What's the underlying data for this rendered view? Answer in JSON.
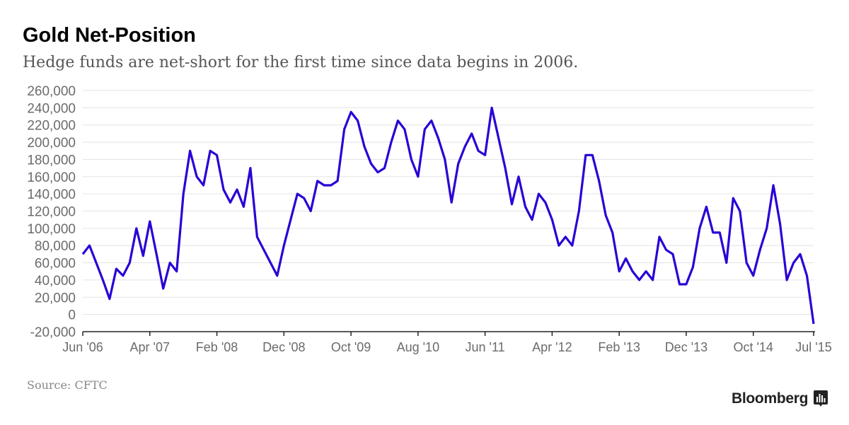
{
  "chart_data": {
    "type": "line",
    "title": "Gold Net-Position",
    "subtitle": "Hedge funds are net-short for the first time since data begins in 2006.",
    "source": "Source: CFTC",
    "brand": "Bloomberg",
    "xlabel": "",
    "ylabel": "",
    "ylim": [
      -20000,
      260000
    ],
    "yticks": [
      -20000,
      0,
      20000,
      40000,
      60000,
      80000,
      100000,
      120000,
      140000,
      160000,
      180000,
      200000,
      220000,
      240000,
      260000
    ],
    "ytick_labels": [
      "-20,000",
      "0",
      "20,000",
      "40,000",
      "60,000",
      "80,000",
      "100,000",
      "120,000",
      "140,000",
      "160,000",
      "180,000",
      "200,000",
      "220,000",
      "240,000",
      "260,000"
    ],
    "xticks": [
      "2006-06",
      "2007-04",
      "2008-02",
      "2008-12",
      "2009-10",
      "2010-08",
      "2011-06",
      "2012-04",
      "2013-02",
      "2013-12",
      "2014-10",
      "2015-07"
    ],
    "xtick_labels": [
      "Jun '06",
      "Apr '07",
      "Feb '08",
      "Dec '08",
      "Oct '09",
      "Aug '10",
      "Jun '11",
      "Apr '12",
      "Feb '13",
      "Dec '13",
      "Oct '14",
      "Jul '15"
    ],
    "grid": true,
    "line_color": "#2a00d6",
    "series": [
      {
        "x": [
          "2006-06",
          "2006-07",
          "2006-08",
          "2006-09",
          "2006-10",
          "2006-11",
          "2006-12",
          "2007-01",
          "2007-02",
          "2007-03",
          "2007-04",
          "2007-05",
          "2007-06",
          "2007-07",
          "2007-08",
          "2007-09",
          "2007-10",
          "2007-11",
          "2007-12",
          "2008-01",
          "2008-02",
          "2008-03",
          "2008-04",
          "2008-05",
          "2008-06",
          "2008-07",
          "2008-08",
          "2008-09",
          "2008-10",
          "2008-11",
          "2008-12",
          "2009-01",
          "2009-02",
          "2009-03",
          "2009-04",
          "2009-05",
          "2009-06",
          "2009-07",
          "2009-08",
          "2009-09",
          "2009-10",
          "2009-11",
          "2009-12",
          "2010-01",
          "2010-02",
          "2010-03",
          "2010-04",
          "2010-05",
          "2010-06",
          "2010-07",
          "2010-08",
          "2010-09",
          "2010-10",
          "2010-11",
          "2010-12",
          "2011-01",
          "2011-02",
          "2011-03",
          "2011-04",
          "2011-05",
          "2011-06",
          "2011-07",
          "2011-08",
          "2011-09",
          "2011-10",
          "2011-11",
          "2011-12",
          "2012-01",
          "2012-02",
          "2012-03",
          "2012-04",
          "2012-05",
          "2012-06",
          "2012-07",
          "2012-08",
          "2012-09",
          "2012-10",
          "2012-11",
          "2012-12",
          "2013-01",
          "2013-02",
          "2013-03",
          "2013-04",
          "2013-05",
          "2013-06",
          "2013-07",
          "2013-08",
          "2013-09",
          "2013-10",
          "2013-11",
          "2013-12",
          "2014-01",
          "2014-02",
          "2014-03",
          "2014-04",
          "2014-05",
          "2014-06",
          "2014-07",
          "2014-08",
          "2014-09",
          "2014-10",
          "2014-11",
          "2014-12",
          "2015-01",
          "2015-02",
          "2015-03",
          "2015-04",
          "2015-05",
          "2015-06",
          "2015-07"
        ],
        "values": [
          70000,
          80000,
          60000,
          40000,
          18000,
          53000,
          45000,
          60000,
          100000,
          68000,
          108000,
          70000,
          30000,
          60000,
          50000,
          140000,
          190000,
          160000,
          150000,
          190000,
          185000,
          145000,
          130000,
          145000,
          125000,
          170000,
          90000,
          75000,
          60000,
          45000,
          80000,
          110000,
          140000,
          135000,
          120000,
          155000,
          150000,
          150000,
          155000,
          215000,
          235000,
          225000,
          195000,
          175000,
          165000,
          170000,
          200000,
          225000,
          215000,
          180000,
          160000,
          215000,
          225000,
          205000,
          180000,
          130000,
          175000,
          195000,
          210000,
          190000,
          185000,
          240000,
          205000,
          170000,
          128000,
          160000,
          125000,
          110000,
          140000,
          130000,
          110000,
          80000,
          90000,
          80000,
          120000,
          185000,
          185000,
          155000,
          115000,
          95000,
          50000,
          65000,
          50000,
          40000,
          50000,
          40000,
          90000,
          75000,
          70000,
          35000,
          35000,
          55000,
          100000,
          125000,
          95000,
          95000,
          60000,
          135000,
          120000,
          60000,
          45000,
          75000,
          100000,
          150000,
          105000,
          40000,
          60000,
          70000,
          45000,
          -11000
        ]
      }
    ]
  }
}
